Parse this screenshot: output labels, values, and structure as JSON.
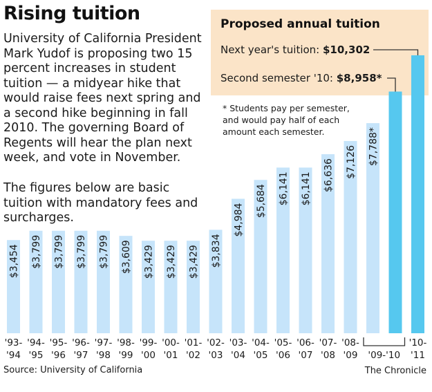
{
  "header": {
    "title": "Rising tuition",
    "intro": "University of California President Mark Yudof is proposing two 15 percent increases in student tuition — a midyear hike that would raise fees next spring and a second hike beginning in fall 2010. The governing Board of Regents will hear the plan next week, and vote in November.",
    "note": "The figures below are basic tuition with mandatory fees and surcharges."
  },
  "proposed": {
    "title": "Proposed annual tuition",
    "next_label": "Next year's tuition: ",
    "next_value": "$10,302",
    "second_label": "Second semester '10: ",
    "second_value": "$8,958*",
    "footnote": "* Students pay per semester, and would pay half of each amount each semester."
  },
  "footer": {
    "source": "Source: University of California",
    "credit": "The Chronicle"
  },
  "colors": {
    "bar": "#c6e4fa",
    "highlight_bar": "#56c8ef",
    "box": "#fbe4c8"
  },
  "chart_data": {
    "type": "bar",
    "categories": [
      [
        "'93-",
        "'94"
      ],
      [
        "'94-",
        "'95"
      ],
      [
        "'95-",
        "'96"
      ],
      [
        "'96-",
        "'97"
      ],
      [
        "'97-",
        "'98"
      ],
      [
        "'98-",
        "'99"
      ],
      [
        "'99-",
        "'00"
      ],
      [
        "'00-",
        "'01"
      ],
      [
        "'01-",
        "'02"
      ],
      [
        "'02-",
        "'03"
      ],
      [
        "'03-",
        "'04"
      ],
      [
        "'04-",
        "'05"
      ],
      [
        "'05-",
        "'06"
      ],
      [
        "'06-",
        "'07"
      ],
      [
        "'07-",
        "'08"
      ],
      [
        "'08-",
        "'09"
      ],
      [
        "",
        "'09-'10"
      ],
      [
        "",
        "'09-'10"
      ],
      [
        "'10-",
        "'11"
      ]
    ],
    "values": [
      3454,
      3799,
      3799,
      3799,
      3799,
      3609,
      3429,
      3429,
      3429,
      3834,
      4984,
      5684,
      6141,
      6141,
      6636,
      7126,
      7788,
      8958,
      10302
    ],
    "data_labels": [
      "$3,454",
      "$3,799",
      "$3,799",
      "$3,799",
      "$3,799",
      "$3,609",
      "$3,429",
      "$3,429",
      "$3,429",
      "$3,834",
      "$4,984",
      "$5,684",
      "$6,141",
      "$6,141",
      "$6,636",
      "$7,126",
      "$7,788*",
      "",
      ""
    ],
    "highlight": [
      false,
      false,
      false,
      false,
      false,
      false,
      false,
      false,
      false,
      false,
      false,
      false,
      false,
      false,
      false,
      false,
      false,
      true,
      true
    ],
    "group_bracket": {
      "label": "'09-'10",
      "from": 16,
      "to": 17
    },
    "ylim": [
      0,
      10302
    ],
    "grid": false
  }
}
